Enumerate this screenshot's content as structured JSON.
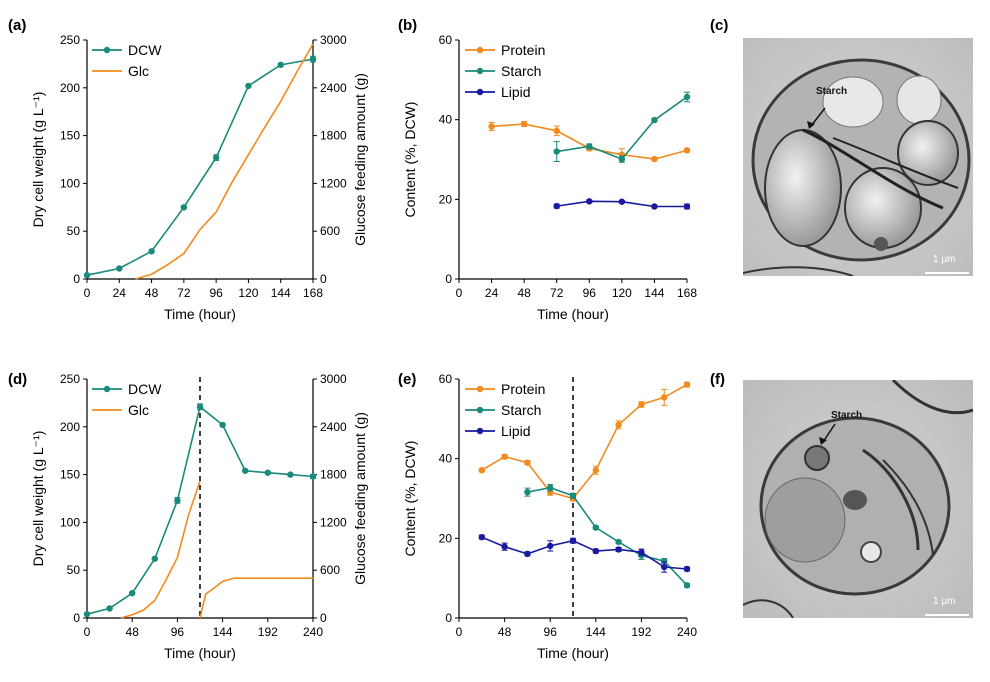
{
  "panel_labels": {
    "a": "(a)",
    "b": "(b)",
    "c": "(c)",
    "d": "(d)",
    "e": "(e)",
    "f": "(f)"
  },
  "colors": {
    "dcw": "#1a8a7a",
    "glc": "#f28a1d",
    "protein": "#f28a1d",
    "starch": "#1a8a7a",
    "lipid": "#1a1aa0"
  },
  "micrographs": {
    "c": {
      "starch_label": "Starch",
      "scale_label": "1 μm"
    },
    "f": {
      "starch_label": "Starch",
      "scale_label": "1 μm"
    }
  },
  "chart_data": [
    {
      "id": "a",
      "type": "line",
      "xlabel": "Time (hour)",
      "ylabel": "Dry cell weight (g L⁻¹)",
      "y2label": "Glucose feeding amount (g)",
      "xlim": [
        0,
        168
      ],
      "xticks": [
        0,
        24,
        48,
        72,
        96,
        120,
        144,
        168
      ],
      "ylim": [
        0,
        250
      ],
      "yticks": [
        0,
        50,
        100,
        150,
        200,
        250
      ],
      "y2lim": [
        0,
        3000
      ],
      "y2ticks": [
        0,
        600,
        1200,
        1800,
        2400,
        3000
      ],
      "legend": "top-left",
      "series": [
        {
          "name": "DCW",
          "axis": "left",
          "marker": true,
          "color": "#1a8a7a",
          "x": [
            0,
            24,
            48,
            72,
            96,
            120,
            144,
            168
          ],
          "y": [
            4,
            11,
            29,
            75,
            127,
            202,
            224,
            230
          ],
          "err": [
            0,
            1,
            1,
            1,
            3,
            1,
            1,
            3
          ]
        },
        {
          "name": "Glc",
          "axis": "right",
          "marker": false,
          "color": "#f28a1d",
          "x": [
            36,
            48,
            60,
            72,
            84,
            96,
            108,
            120,
            132,
            144,
            156,
            168
          ],
          "y": [
            0,
            60,
            180,
            320,
            620,
            840,
            1220,
            1560,
            1900,
            2230,
            2600,
            2950
          ]
        }
      ]
    },
    {
      "id": "b",
      "type": "line",
      "xlabel": "Time (hour)",
      "ylabel": "Content (%, DCW)",
      "xlim": [
        0,
        168
      ],
      "xticks": [
        0,
        24,
        48,
        72,
        96,
        120,
        144,
        168
      ],
      "ylim": [
        0,
        60
      ],
      "yticks": [
        0,
        20,
        40,
        60
      ],
      "legend": "top-left",
      "series": [
        {
          "name": "Protein",
          "color": "#f28a1d",
          "x": [
            24,
            48,
            72,
            96,
            120,
            144,
            168
          ],
          "y": [
            38.3,
            38.9,
            37.2,
            32.8,
            31.2,
            30.1,
            32.3
          ],
          "err": [
            1.0,
            0.6,
            1.2,
            0.6,
            1.5,
            0.4,
            0.4
          ]
        },
        {
          "name": "Starch",
          "color": "#1a8a7a",
          "x": [
            72,
            96,
            120,
            144,
            168
          ],
          "y": [
            32.0,
            33.3,
            30.1,
            39.9,
            45.7
          ],
          "err": [
            2.5,
            0.6,
            0.8,
            0.4,
            1.2
          ]
        },
        {
          "name": "Lipid",
          "color": "#1a1aa0",
          "x": [
            72,
            96,
            120,
            144,
            168
          ],
          "y": [
            18.3,
            19.5,
            19.4,
            18.2,
            18.2
          ],
          "err": [
            0.5,
            0.3,
            0.3,
            0.3,
            0.6
          ]
        }
      ]
    },
    {
      "id": "d",
      "type": "line",
      "xlabel": "Time (hour)",
      "ylabel": "Dry cell weight (g L⁻¹)",
      "y2label": "Glucose feeding amount (g)",
      "xlim": [
        0,
        240
      ],
      "xticks": [
        0,
        48,
        96,
        144,
        192,
        240
      ],
      "ylim": [
        0,
        250
      ],
      "yticks": [
        0,
        50,
        100,
        150,
        200,
        250
      ],
      "y2lim": [
        0,
        3000
      ],
      "y2ticks": [
        0,
        600,
        1200,
        1800,
        2400,
        3000
      ],
      "vline": 120,
      "legend": "top-left",
      "series": [
        {
          "name": "DCW",
          "axis": "left",
          "marker": true,
          "color": "#1a8a7a",
          "x": [
            0,
            24,
            48,
            72,
            96,
            120,
            144,
            168,
            192,
            216,
            240
          ],
          "y": [
            4,
            10,
            26,
            62,
            123,
            221,
            202,
            154,
            152,
            150,
            148
          ],
          "err": [
            0,
            1,
            1,
            1,
            3,
            3,
            1,
            1,
            1,
            1,
            2
          ]
        },
        {
          "name": "Glc",
          "axis": "right",
          "marker": false,
          "color": "#f28a1d",
          "x": [
            36,
            48,
            60,
            72,
            84,
            96,
            108,
            120,
            120,
            126,
            132,
            144,
            156,
            168,
            192,
            216,
            240
          ],
          "y": [
            0,
            40,
            100,
            220,
            480,
            760,
            1300,
            1720,
            0,
            300,
            350,
            460,
            500,
            500,
            500,
            500,
            500
          ]
        }
      ]
    },
    {
      "id": "e",
      "type": "line",
      "xlabel": "Time (hour)",
      "ylabel": "Content (%, DCW)",
      "xlim": [
        0,
        240
      ],
      "xticks": [
        0,
        48,
        96,
        144,
        192,
        240
      ],
      "ylim": [
        0,
        60
      ],
      "yticks": [
        0,
        20,
        40,
        60
      ],
      "vline": 120,
      "legend": "top-left",
      "series": [
        {
          "name": "Protein",
          "color": "#f28a1d",
          "x": [
            24,
            48,
            72,
            96,
            120,
            144,
            168,
            192,
            216,
            240
          ],
          "y": [
            37.1,
            40.5,
            39.0,
            31.6,
            30.0,
            37.1,
            48.5,
            53.6,
            55.4,
            58.6
          ],
          "err": [
            0.4,
            0.5,
            0.5,
            0.8,
            0.6,
            1.0,
            1.0,
            0.7,
            2.0,
            0.6
          ]
        },
        {
          "name": "Starch",
          "color": "#1a8a7a",
          "x": [
            72,
            96,
            120,
            144,
            168,
            192,
            216,
            240
          ],
          "y": [
            31.6,
            32.7,
            30.7,
            22.7,
            19.1,
            15.7,
            14.3,
            8.2
          ],
          "err": [
            1.0,
            0.8,
            0.6,
            0.4,
            0.4,
            1.0,
            0.6,
            0.4
          ]
        },
        {
          "name": "Lipid",
          "color": "#1a1aa0",
          "x": [
            24,
            48,
            72,
            96,
            120,
            144,
            168,
            192,
            216,
            240
          ],
          "y": [
            20.3,
            17.9,
            16.1,
            18.1,
            19.4,
            16.8,
            17.2,
            16.5,
            12.8,
            12.3
          ],
          "err": [
            0.5,
            0.9,
            0.5,
            1.3,
            0.6,
            0.5,
            0.5,
            0.8,
            1.3,
            0.5
          ]
        }
      ]
    }
  ]
}
